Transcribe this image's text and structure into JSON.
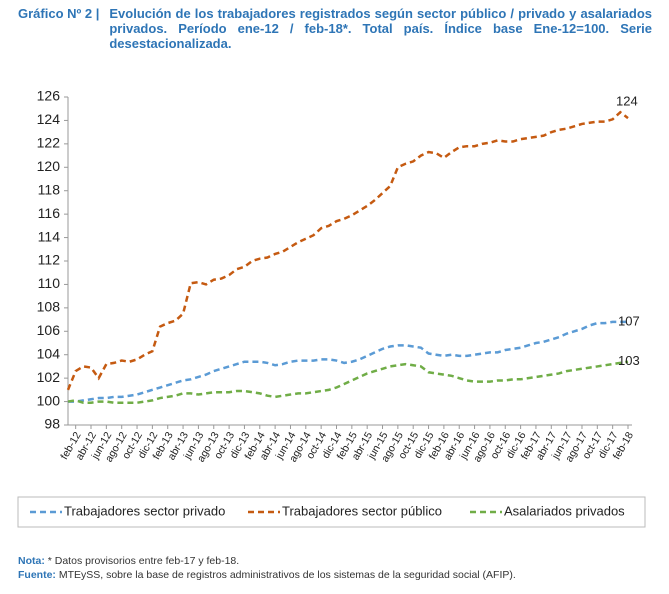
{
  "chart_data": {
    "type": "line",
    "title_prefix": "Gráfico Nº 2 |",
    "title": "Evolución de los trabajadores registrados según sector público / privado y asalariados privados. Período ene-12 / feb-18*. Total país. Índice base Ene-12=100. Serie desestacionalizada.",
    "categories": [
      null,
      "feb-12",
      null,
      "abr-12",
      null,
      "jun-12",
      null,
      "ago-12",
      null,
      "oct-12",
      null,
      "dic-12",
      null,
      "feb-13",
      null,
      "abr-13",
      null,
      "jun-13",
      null,
      "ago-13",
      null,
      "oct-13",
      null,
      "dic-13",
      null,
      "feb-14",
      null,
      "abr-14",
      null,
      "jun-14",
      null,
      "ago-14",
      null,
      "oct-14",
      null,
      "dic-14",
      null,
      "feb-15",
      null,
      "abr-15",
      null,
      "jun-15",
      null,
      "ago-15",
      null,
      "oct-15",
      null,
      "dic-15",
      null,
      "feb-16",
      null,
      "abr-16",
      null,
      "jun-16",
      null,
      "ago-16",
      null,
      "oct-16",
      null,
      "dic-16",
      null,
      "feb-17",
      null,
      "abr-17",
      null,
      "jun-17",
      null,
      "ago-17",
      null,
      "oct-17",
      null,
      "dic-17",
      null,
      "feb-18"
    ],
    "series": [
      {
        "name": "Trabajadores sector privado",
        "color": "#5b9bd5",
        "end_label": "107",
        "values": [
          100,
          100,
          100.1,
          100.2,
          100.3,
          100.3,
          100.4,
          100.4,
          100.5,
          100.6,
          100.8,
          101.0,
          101.2,
          101.4,
          101.6,
          101.8,
          101.9,
          102.1,
          102.3,
          102.6,
          102.8,
          103.0,
          103.2,
          103.4,
          103.4,
          103.4,
          103.3,
          103.1,
          103.2,
          103.4,
          103.5,
          103.5,
          103.5,
          103.6,
          103.6,
          103.5,
          103.3,
          103.4,
          103.6,
          103.9,
          104.2,
          104.5,
          104.7,
          104.8,
          104.8,
          104.7,
          104.6,
          104.1,
          104.0,
          103.9,
          104.0,
          103.9,
          103.9,
          104.0,
          104.1,
          104.2,
          104.2,
          104.4,
          104.5,
          104.6,
          104.8,
          105.0,
          105.1,
          105.3,
          105.5,
          105.8,
          106.0,
          106.2,
          106.5,
          106.7,
          106.7,
          106.8,
          106.8,
          106.8
        ]
      },
      {
        "name": "Trabajadores sector público",
        "color": "#c55a11",
        "end_label": "124",
        "values": [
          101,
          102.6,
          103,
          102.9,
          102,
          103.2,
          103.3,
          103.5,
          103.4,
          103.6,
          104,
          104.3,
          106.4,
          106.7,
          106.9,
          107.5,
          110.1,
          110.2,
          110.0,
          110.4,
          110.5,
          110.8,
          111.3,
          111.5,
          112.0,
          112.2,
          112.3,
          112.6,
          112.8,
          113.2,
          113.6,
          113.9,
          114.2,
          114.8,
          115.0,
          115.4,
          115.6,
          115.9,
          116.3,
          116.7,
          117.2,
          117.8,
          118.4,
          120.0,
          120.3,
          120.5,
          121.0,
          121.3,
          121.2,
          120.8,
          121.3,
          121.7,
          121.8,
          121.8,
          122.0,
          122.1,
          122.3,
          122.2,
          122.2,
          122.4,
          122.5,
          122.6,
          122.7,
          123.0,
          123.2,
          123.3,
          123.5,
          123.7,
          123.8,
          123.9,
          123.9,
          124.1,
          124.7,
          124.2
        ]
      },
      {
        "name": "Asalariados privados",
        "color": "#70ad47",
        "end_label": "103",
        "values": [
          100,
          100.1,
          99.9,
          99.9,
          100,
          100,
          99.9,
          99.9,
          99.9,
          99.9,
          100,
          100.1,
          100.3,
          100.4,
          100.5,
          100.7,
          100.7,
          100.6,
          100.7,
          100.8,
          100.8,
          100.8,
          100.9,
          100.9,
          100.8,
          100.7,
          100.5,
          100.4,
          100.5,
          100.6,
          100.7,
          100.7,
          100.8,
          100.9,
          101.0,
          101.2,
          101.5,
          101.8,
          102.1,
          102.4,
          102.6,
          102.8,
          103.0,
          103.1,
          103.2,
          103.1,
          103.0,
          102.5,
          102.4,
          102.3,
          102.2,
          102.0,
          101.8,
          101.7,
          101.7,
          101.7,
          101.8,
          101.8,
          101.9,
          101.9,
          102.0,
          102.1,
          102.2,
          102.3,
          102.4,
          102.6,
          102.7,
          102.8,
          102.9,
          103.0,
          103.1,
          103.2,
          103.3,
          103.4
        ]
      }
    ],
    "ylim": [
      98,
      126
    ],
    "yticks": [
      98,
      100,
      102,
      104,
      106,
      108,
      110,
      112,
      114,
      116,
      118,
      120,
      122,
      124,
      126
    ],
    "grid": false,
    "legend": "bottom",
    "note_label": "Nota:",
    "note": " * Datos provisorios entre feb-17 y feb-18.",
    "source_label": "Fuente:",
    "source": " MTEySS, sobre la base de registros administrativos de los sistemas de la seguridad social (AFIP)."
  }
}
